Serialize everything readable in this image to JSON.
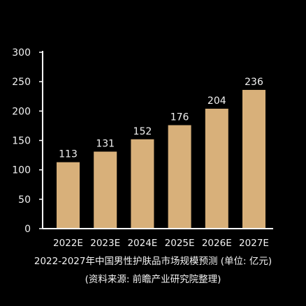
{
  "chart_data": {
    "type": "bar",
    "title": "2022-2027年中国男性护肤品市场规模预测 (单位: 亿元)",
    "source": "(资料来源: 前瞻产业研究院整理)",
    "categories": [
      "2022E",
      "2023E",
      "2024E",
      "2025E",
      "2026E",
      "2027E"
    ],
    "values": [
      113,
      131,
      152,
      176,
      204,
      236
    ],
    "yticks": [
      0,
      50,
      100,
      150,
      200,
      250,
      300
    ],
    "ylim": [
      0,
      300
    ],
    "xlabel": "",
    "ylabel": "",
    "grid": false,
    "legend": "none",
    "data_labels": true,
    "colors": {
      "bar": "#d8b07a",
      "axis": "#ffffff",
      "text": "#f2f2f2",
      "background": "#000000"
    }
  }
}
